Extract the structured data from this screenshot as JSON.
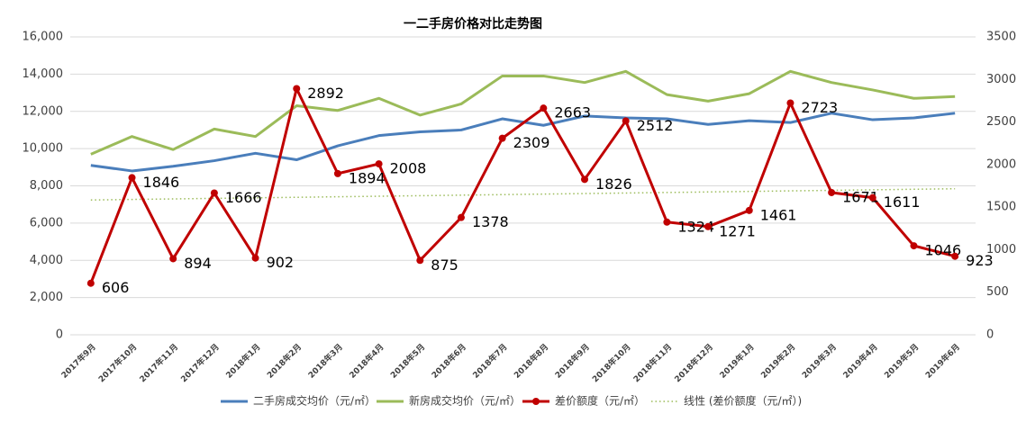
{
  "chart_data": {
    "type": "line",
    "title": "一二手房价格对比走势图",
    "categories": [
      "2017年9月",
      "2017年10月",
      "2017年11月",
      "2017年12月",
      "2018年1月",
      "2018年2月",
      "2018年3月",
      "2018年4月",
      "2018年5月",
      "2018年6月",
      "2018年7月",
      "2018年8月",
      "2018年9月",
      "2018年10月",
      "2018年11月",
      "2018年12月",
      "2019年1月",
      "2019年2月",
      "2019年3月",
      "2019年4月",
      "2019年5月",
      "2019年6月"
    ],
    "series": [
      {
        "name": "二手房成交均价（元/㎡）",
        "color": "#4a7ebb",
        "values": [
          9100,
          8800,
          9050,
          9350,
          9750,
          9400,
          10150,
          10700,
          10900,
          11000,
          11600,
          11250,
          11750,
          11650,
          11600,
          11300,
          11500,
          11400,
          11900,
          11550,
          11650,
          11900
        ]
      },
      {
        "name": "新房成交均价（元/㎡）",
        "color": "#9bbb59",
        "values": [
          9700,
          10650,
          9950,
          11050,
          10650,
          12300,
          12050,
          12700,
          11800,
          12400,
          13900,
          13900,
          13550,
          14150,
          12900,
          12550,
          12950,
          14150,
          13550,
          13150,
          12700,
          12800
        ]
      },
      {
        "name": "差价额度（元/㎡）",
        "color": "#c00000",
        "axis": "y2",
        "markers": true,
        "data_labels": true,
        "values": [
          606,
          1846,
          894,
          1666,
          902,
          2892,
          1894,
          2008,
          875,
          1378,
          2309,
          2663,
          1826,
          2512,
          1324,
          1271,
          1461,
          2723,
          1671,
          1611,
          1046,
          923
        ]
      }
    ],
    "trendline": {
      "name": "线性 (差价额度（元/㎡）)",
      "of_series": 2,
      "kind": "linear",
      "color": "#9bbb59"
    },
    "ylim": [
      0,
      16000
    ],
    "yticks": [
      0,
      {
        "value": 2000,
        "label": "2,000"
      },
      {
        "value": 4000,
        "label": "4,000"
      },
      {
        "value": 6000,
        "label": "6,000"
      },
      {
        "value": 8000,
        "label": "8,000"
      },
      {
        "value": 10000,
        "label": "10,000"
      },
      {
        "value": 12000,
        "label": "12,000"
      },
      {
        "value": 14000,
        "label": "14,000"
      },
      {
        "value": 16000,
        "label": "16,000"
      }
    ],
    "y2lim": [
      0,
      3500
    ],
    "y2ticks": [
      0,
      500,
      1000,
      1500,
      2000,
      2500,
      3000,
      3500
    ],
    "grid": true,
    "legend": "bottom"
  }
}
